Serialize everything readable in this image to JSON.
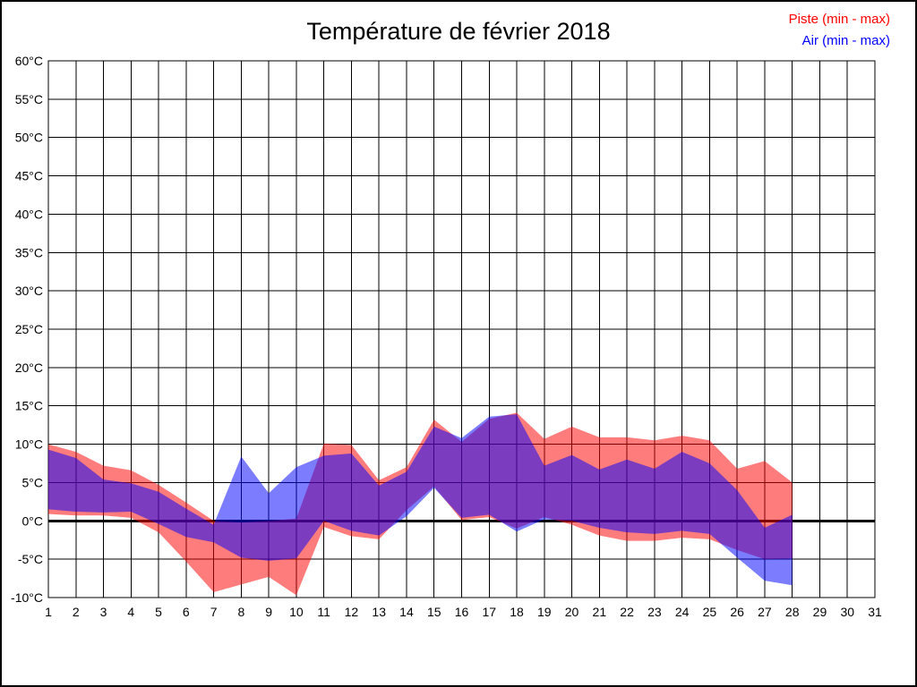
{
  "page": {
    "background": "#ffffff",
    "frame_color": "#000000"
  },
  "chart_data": {
    "type": "area",
    "title": "Température de février 2018",
    "grid": true,
    "legend_position": "top-right",
    "legend": [
      {
        "label": "Piste (min - max)",
        "color": "#ff0000"
      },
      {
        "label": "Air (min - max)",
        "color": "#0000ff"
      }
    ],
    "x_axis": {
      "min": 1,
      "max": 31,
      "ticks": [
        1,
        2,
        3,
        4,
        5,
        6,
        7,
        8,
        9,
        10,
        11,
        12,
        13,
        14,
        15,
        16,
        17,
        18,
        19,
        20,
        21,
        22,
        23,
        24,
        25,
        26,
        27,
        28,
        29,
        30,
        31
      ]
    },
    "y_axis": {
      "min": -10,
      "max": 60,
      "tick_step": 5,
      "unit": "°C",
      "ticks": [
        60,
        55,
        50,
        45,
        40,
        35,
        30,
        25,
        20,
        15,
        10,
        5,
        0,
        -5,
        -10
      ]
    },
    "zero_line_value": 0,
    "band_fill_opacity": 0.515,
    "series": [
      {
        "name": "Piste (min - max)",
        "color": "#ff0000",
        "days": [
          1,
          2,
          3,
          4,
          5,
          6,
          7,
          8,
          9,
          10,
          11,
          12,
          13,
          14,
          15,
          16,
          17,
          18,
          19,
          20,
          21,
          22,
          23,
          24,
          25,
          26,
          27,
          28
        ],
        "min": [
          0.9,
          0.7,
          0.7,
          0.4,
          -1.5,
          -5.3,
          -9.3,
          -8.3,
          -7.3,
          -9.7,
          -0.8,
          -2.0,
          -2.4,
          1.4,
          4.5,
          0.1,
          0.5,
          -1.0,
          0.5,
          -0.5,
          -1.9,
          -2.6,
          -2.6,
          -2.2,
          -2.4,
          -3.8,
          -5.0,
          -4.9
        ],
        "max": [
          10.0,
          9.0,
          7.2,
          6.6,
          4.7,
          2.4,
          0.0,
          -0.2,
          0.0,
          0.3,
          10.1,
          9.9,
          5.3,
          7.0,
          13.2,
          10.3,
          13.3,
          14.1,
          10.7,
          12.3,
          10.9,
          10.9,
          10.5,
          11.1,
          10.5,
          6.8,
          7.8,
          5.0
        ]
      },
      {
        "name": "Air (min - max)",
        "color": "#0000ff",
        "days": [
          1,
          2,
          3,
          4,
          5,
          6,
          7,
          8,
          9,
          10,
          11,
          12,
          13,
          14,
          15,
          16,
          17,
          18,
          19,
          20,
          21,
          22,
          23,
          24,
          25,
          26,
          27,
          28
        ],
        "min": [
          1.5,
          1.2,
          1.1,
          1.2,
          -0.4,
          -2.1,
          -2.8,
          -4.8,
          -5.2,
          -4.9,
          0.0,
          -1.3,
          -1.9,
          0.6,
          4.3,
          0.4,
          0.8,
          -1.4,
          0.2,
          0.0,
          -0.9,
          -1.5,
          -1.7,
          -1.3,
          -1.7,
          -4.8,
          -7.8,
          -8.4
        ],
        "max": [
          9.3,
          8.2,
          5.4,
          4.9,
          3.8,
          1.6,
          -0.5,
          8.4,
          3.6,
          7.0,
          8.5,
          8.8,
          4.6,
          6.4,
          12.3,
          10.8,
          13.6,
          13.9,
          7.2,
          8.6,
          6.7,
          8.0,
          6.8,
          9.0,
          7.5,
          4.0,
          -0.9,
          0.8
        ]
      }
    ]
  }
}
